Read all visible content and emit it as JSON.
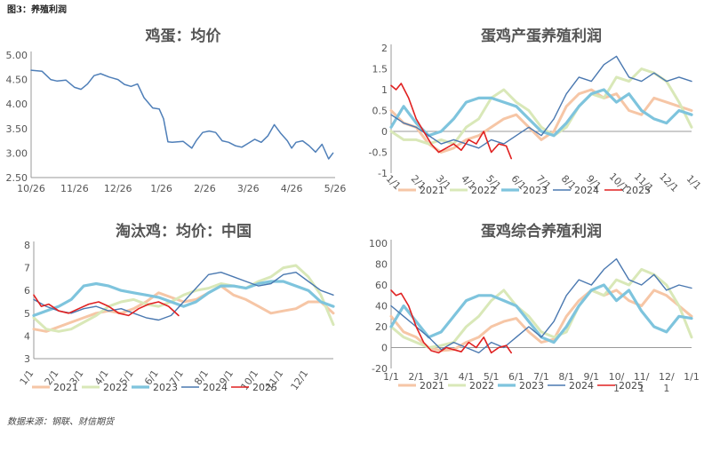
{
  "figure_label": "图3：养殖利润",
  "source": "数据来源：钢联、财信期货",
  "colors": {
    "2021": "#f6c6a6",
    "2022": "#d9e8b8",
    "2023": "#7ec4dd",
    "2024": "#4a78b0",
    "2025": "#e02020",
    "price": "#4f7fb8",
    "axis": "#999999",
    "tick_text": "#555555",
    "title_text": "#555555"
  },
  "chart_data": [
    {
      "id": "egg-price",
      "type": "line",
      "title": "鸡蛋：均价",
      "ylim": [
        2.5,
        5.0
      ],
      "yticks": [
        "5.00",
        "4.50",
        "4.00",
        "3.50",
        "3.00",
        "2.50"
      ],
      "xticks": [
        "10/26",
        "11/26",
        "12/26",
        "1/26",
        "2/26",
        "3/26",
        "4/26",
        "5/26"
      ],
      "grid": false,
      "legend": "none",
      "series": [
        {
          "key": "price",
          "x": [
            0,
            0.25,
            0.45,
            0.6,
            0.8,
            1,
            1.15,
            1.3,
            1.45,
            1.6,
            1.8,
            2,
            2.15,
            2.3,
            2.45,
            2.6,
            2.8,
            2.95,
            3.05,
            3.15,
            3.25,
            3.5,
            3.7,
            3.8,
            3.95,
            4.1,
            4.25,
            4.4,
            4.55,
            4.7,
            4.85,
            5,
            5.15,
            5.3,
            5.45,
            5.6,
            5.75,
            5.9,
            6,
            6.1,
            6.25,
            6.4,
            6.55,
            6.7,
            6.85,
            6.95
          ],
          "y": [
            4.69,
            4.67,
            4.5,
            4.47,
            4.49,
            4.34,
            4.3,
            4.41,
            4.58,
            4.62,
            4.55,
            4.5,
            4.4,
            4.36,
            4.41,
            4.13,
            3.92,
            3.9,
            3.7,
            3.23,
            3.22,
            3.24,
            3.1,
            3.25,
            3.42,
            3.45,
            3.42,
            3.25,
            3.22,
            3.15,
            3.12,
            3.2,
            3.28,
            3.22,
            3.35,
            3.58,
            3.4,
            3.25,
            3.1,
            3.22,
            3.25,
            3.15,
            3.02,
            3.18,
            2.88,
            3.0
          ]
        }
      ]
    },
    {
      "id": "layer-egg-profit",
      "type": "line",
      "title": "蛋鸡产蛋养殖利润",
      "ylim": [
        -1,
        2
      ],
      "yticks": [
        "2",
        "1.5",
        "1",
        "0.5",
        "0",
        "-0.5",
        "-1"
      ],
      "xticks": [
        "1/1",
        "2/1",
        "3/1",
        "4/1",
        "5/1",
        "6/1",
        "7/1",
        "8/1",
        "9/1",
        "10/1",
        "11/1",
        "12/1",
        "1/1"
      ],
      "grid": false,
      "legend": "bottom",
      "series": [
        {
          "name": "2021",
          "x": [
            0,
            0.5,
            1,
            1.5,
            2,
            2.5,
            3,
            3.5,
            4,
            4.5,
            5,
            5.5,
            6,
            6.5,
            7,
            7.5,
            8,
            8.5,
            9,
            9.5,
            10,
            10.5,
            11,
            11.5,
            12
          ],
          "y": [
            0.5,
            0.2,
            0.1,
            -0.3,
            -0.5,
            -0.4,
            -0.2,
            -0.1,
            0.1,
            0.3,
            0.4,
            0.1,
            -0.2,
            0.0,
            0.6,
            0.9,
            1.0,
            0.8,
            0.9,
            0.5,
            0.4,
            0.8,
            0.7,
            0.6,
            0.5
          ]
        },
        {
          "name": "2022",
          "x": [
            0,
            0.5,
            1,
            1.5,
            2,
            2.5,
            3,
            3.5,
            4,
            4.5,
            5,
            5.5,
            6,
            6.5,
            7,
            7.5,
            8,
            8.5,
            9,
            9.5,
            10,
            10.5,
            11,
            11.5,
            12
          ],
          "y": [
            0.0,
            -0.2,
            -0.2,
            -0.3,
            -0.2,
            -0.3,
            0.1,
            0.3,
            0.8,
            1.0,
            0.7,
            0.5,
            0.1,
            -0.1,
            0.1,
            0.6,
            0.9,
            0.8,
            1.3,
            1.2,
            1.5,
            1.4,
            1.2,
            0.7,
            0.1
          ]
        },
        {
          "name": "2023",
          "x": [
            0,
            0.5,
            1,
            1.5,
            2,
            2.5,
            3,
            3.5,
            4,
            4.5,
            5,
            5.5,
            6,
            6.5,
            7,
            7.5,
            8,
            8.5,
            9,
            9.5,
            10,
            10.5,
            11,
            11.5,
            12
          ],
          "y": [
            0.1,
            0.6,
            0.2,
            -0.1,
            0.0,
            0.3,
            0.7,
            0.8,
            0.8,
            0.7,
            0.6,
            0.3,
            0.0,
            -0.1,
            0.2,
            0.6,
            0.9,
            1.0,
            0.7,
            0.9,
            0.5,
            0.3,
            0.2,
            0.5,
            0.4
          ]
        },
        {
          "name": "2024",
          "x": [
            0,
            0.5,
            1,
            1.5,
            2,
            2.5,
            3,
            3.5,
            4,
            4.5,
            5,
            5.5,
            6,
            6.5,
            7,
            7.5,
            8,
            8.5,
            9,
            9.5,
            10,
            10.5,
            11,
            11.5,
            12
          ],
          "y": [
            0.4,
            0.2,
            0.1,
            -0.1,
            -0.3,
            -0.2,
            -0.3,
            -0.4,
            -0.2,
            -0.3,
            -0.1,
            0.1,
            -0.1,
            0.3,
            0.9,
            1.3,
            1.2,
            1.6,
            1.8,
            1.3,
            1.2,
            1.4,
            1.2,
            1.3,
            1.2
          ]
        },
        {
          "name": "2025",
          "x": [
            0,
            0.2,
            0.4,
            0.7,
            1,
            1.3,
            1.6,
            1.9,
            2.2,
            2.5,
            2.8,
            3.1,
            3.4,
            3.7,
            4,
            4.3,
            4.6,
            4.8
          ],
          "y": [
            1.1,
            1.0,
            1.15,
            0.8,
            0.3,
            0.0,
            -0.3,
            -0.5,
            -0.4,
            -0.3,
            -0.45,
            -0.2,
            -0.3,
            0.0,
            -0.5,
            -0.3,
            -0.35,
            -0.65
          ]
        }
      ]
    },
    {
      "id": "culled-hen-price",
      "type": "line",
      "title": "淘汰鸡：均价：中国",
      "ylim": [
        3,
        8
      ],
      "yticks": [
        "8",
        "7",
        "6",
        "5",
        "4",
        "3"
      ],
      "xticks": [
        "1/1",
        "2/1",
        "3/1",
        "4/1",
        "5/1",
        "6/1",
        "7/1",
        "8/1",
        "9/1",
        "10/1",
        "11/1",
        "12/1"
      ],
      "grid": false,
      "legend": "bottom",
      "series": [
        {
          "name": "2021",
          "x": [
            0,
            0.5,
            1,
            1.5,
            2,
            2.5,
            3,
            3.5,
            4,
            4.5,
            5,
            5.5,
            6,
            6.5,
            7,
            7.5,
            8,
            8.5,
            9,
            9.5,
            10,
            10.5,
            11,
            11.5,
            12
          ],
          "y": [
            4.3,
            4.2,
            4.4,
            4.6,
            4.8,
            5.0,
            5.1,
            5.0,
            5.2,
            5.5,
            5.9,
            5.7,
            5.5,
            5.6,
            5.9,
            6.2,
            5.8,
            5.6,
            5.3,
            5.0,
            5.1,
            5.2,
            5.5,
            5.5,
            5.0
          ]
        },
        {
          "name": "2022",
          "x": [
            0,
            0.5,
            1,
            1.5,
            2,
            2.5,
            3,
            3.5,
            4,
            4.5,
            5,
            5.5,
            6,
            6.5,
            7,
            7.5,
            8,
            8.5,
            9,
            9.5,
            10,
            10.5,
            11,
            11.5,
            12
          ],
          "y": [
            4.8,
            4.3,
            4.2,
            4.3,
            4.6,
            4.9,
            5.3,
            5.5,
            5.6,
            5.4,
            5.3,
            5.5,
            5.8,
            6.0,
            6.1,
            6.3,
            6.2,
            6.1,
            6.4,
            6.6,
            7.0,
            7.1,
            6.6,
            5.8,
            4.5
          ]
        },
        {
          "name": "2023",
          "x": [
            0,
            0.5,
            1,
            1.5,
            2,
            2.5,
            3,
            3.5,
            4,
            4.5,
            5,
            5.5,
            6,
            6.5,
            7,
            7.5,
            8,
            8.5,
            9,
            9.5,
            10,
            10.5,
            11,
            11.5,
            12
          ],
          "y": [
            4.9,
            5.1,
            5.3,
            5.6,
            6.2,
            6.3,
            6.2,
            6.0,
            5.9,
            5.8,
            5.7,
            5.5,
            5.3,
            5.5,
            5.9,
            6.2,
            6.2,
            6.1,
            6.3,
            6.4,
            6.4,
            6.2,
            6.0,
            5.5,
            5.3
          ]
        },
        {
          "name": "2024",
          "x": [
            0,
            0.5,
            1,
            1.5,
            2,
            2.5,
            3,
            3.5,
            4,
            4.5,
            5,
            5.5,
            6,
            6.5,
            7,
            7.5,
            8,
            8.5,
            9,
            9.5,
            10,
            10.5,
            11,
            11.5,
            12
          ],
          "y": [
            5.6,
            5.3,
            5.1,
            5.0,
            5.2,
            5.3,
            5.1,
            5.2,
            5.0,
            4.8,
            4.7,
            4.9,
            5.5,
            6.1,
            6.7,
            6.8,
            6.6,
            6.4,
            6.2,
            6.3,
            6.7,
            6.8,
            6.4,
            6.0,
            5.8
          ]
        },
        {
          "name": "2025",
          "x": [
            0,
            0.3,
            0.6,
            1,
            1.4,
            1.8,
            2.2,
            2.6,
            3,
            3.4,
            3.8,
            4.2,
            4.6,
            5,
            5.4,
            5.8
          ],
          "y": [
            5.8,
            5.3,
            5.4,
            5.1,
            5.0,
            5.2,
            5.4,
            5.5,
            5.3,
            5.0,
            4.9,
            5.2,
            5.4,
            5.5,
            5.3,
            4.9
          ]
        }
      ]
    },
    {
      "id": "layer-combined-profit",
      "type": "line",
      "title": "蛋鸡综合养殖利润",
      "ylim": [
        -20,
        100
      ],
      "yticks": [
        "100",
        "80",
        "60",
        "40",
        "20",
        "0",
        "-20"
      ],
      "xticks": [
        "1/1",
        "2/1",
        "3/1",
        "4/1",
        "5/1",
        "6/1",
        "7/1",
        "8/1",
        "9/1",
        "10/\n1",
        "11/\n1",
        "12/\n1",
        "1/1"
      ],
      "grid": false,
      "legend": "bottom",
      "series": [
        {
          "name": "2021",
          "x": [
            0,
            0.5,
            1,
            1.5,
            2,
            2.5,
            3,
            3.5,
            4,
            4.5,
            5,
            5.5,
            6,
            6.5,
            7,
            7.5,
            8,
            8.5,
            9,
            9.5,
            10,
            10.5,
            11,
            11.5,
            12
          ],
          "y": [
            30,
            15,
            10,
            0,
            -3,
            -2,
            5,
            10,
            20,
            25,
            28,
            15,
            5,
            8,
            30,
            45,
            55,
            50,
            55,
            45,
            40,
            55,
            50,
            40,
            30
          ]
        },
        {
          "name": "2022",
          "x": [
            0,
            0.5,
            1,
            1.5,
            2,
            2.5,
            3,
            3.5,
            4,
            4.5,
            5,
            5.5,
            6,
            6.5,
            7,
            7.5,
            8,
            8.5,
            9,
            9.5,
            10,
            10.5,
            11,
            11.5,
            12
          ],
          "y": [
            20,
            10,
            5,
            0,
            2,
            5,
            20,
            30,
            45,
            55,
            40,
            30,
            15,
            10,
            15,
            40,
            55,
            50,
            65,
            60,
            75,
            70,
            60,
            40,
            10
          ]
        },
        {
          "name": "2023",
          "x": [
            0,
            0.5,
            1,
            1.5,
            2,
            2.5,
            3,
            3.5,
            4,
            4.5,
            5,
            5.5,
            6,
            6.5,
            7,
            7.5,
            8,
            8.5,
            9,
            9.5,
            10,
            10.5,
            11,
            11.5,
            12
          ],
          "y": [
            20,
            40,
            25,
            10,
            15,
            30,
            45,
            50,
            50,
            45,
            40,
            25,
            10,
            5,
            20,
            40,
            55,
            60,
            45,
            55,
            35,
            20,
            15,
            30,
            28
          ]
        },
        {
          "name": "2024",
          "x": [
            0,
            0.5,
            1,
            1.5,
            2,
            2.5,
            3,
            3.5,
            4,
            4.5,
            5,
            5.5,
            6,
            6.5,
            7,
            7.5,
            8,
            8.5,
            9,
            9.5,
            10,
            10.5,
            11,
            11.5,
            12
          ],
          "y": [
            40,
            30,
            20,
            10,
            -2,
            5,
            0,
            -5,
            5,
            0,
            10,
            20,
            10,
            25,
            50,
            65,
            60,
            75,
            85,
            65,
            60,
            70,
            55,
            60,
            57
          ]
        },
        {
          "name": "2025",
          "x": [
            0,
            0.2,
            0.4,
            0.7,
            1,
            1.3,
            1.6,
            1.9,
            2.2,
            2.5,
            2.8,
            3.1,
            3.4,
            3.7,
            4,
            4.3,
            4.6,
            4.8
          ],
          "y": [
            55,
            50,
            52,
            40,
            20,
            5,
            -3,
            -5,
            0,
            -2,
            -4,
            5,
            0,
            10,
            -5,
            0,
            2,
            -5
          ]
        }
      ]
    }
  ]
}
